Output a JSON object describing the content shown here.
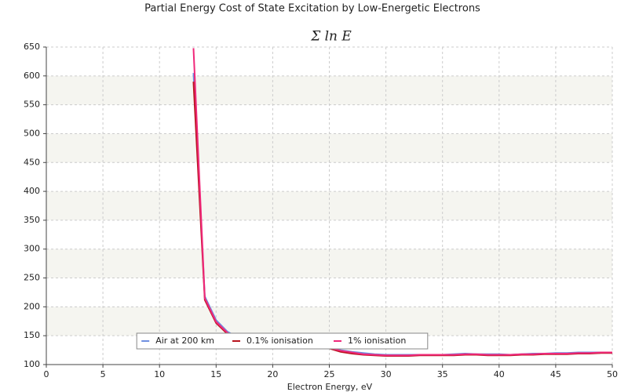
{
  "chart_data": {
    "type": "line",
    "title": "Partial Energy Cost of State Excitation by Low-Energetic Electrons",
    "subtitle": "Σ ln E",
    "x_label": "Electron Energy, eV",
    "x": [
      13,
      14,
      15,
      16,
      17,
      18,
      19,
      20,
      21,
      22,
      23,
      24,
      25,
      26,
      27,
      28,
      29,
      30,
      31,
      32,
      33,
      34,
      35,
      36,
      37,
      38,
      39,
      40,
      41,
      42,
      43,
      44,
      45,
      46,
      47,
      48,
      49,
      50
    ],
    "series": [
      {
        "name": "Air at 200 km",
        "color": "#6f8fe0",
        "values": [
          605,
          218,
          177,
          157,
          146,
          140,
          137,
          135,
          133,
          132,
          132,
          131,
          130,
          125,
          122,
          120,
          118,
          117,
          117,
          117,
          117,
          117,
          117,
          118,
          119,
          118,
          118,
          118,
          117,
          118,
          119,
          119,
          120,
          120,
          121,
          121,
          121,
          121
        ]
      },
      {
        "name": "0.1% ionisation",
        "color": "#b8141e",
        "values": [
          590,
          212,
          172,
          153,
          143,
          138,
          135,
          133,
          131,
          130,
          130,
          129,
          128,
          122,
          119,
          117,
          116,
          115,
          115,
          115,
          116,
          116,
          116,
          116,
          117,
          117,
          116,
          116,
          116,
          117,
          117,
          118,
          118,
          118,
          119,
          119,
          120,
          120
        ]
      },
      {
        "name": "1% ionisation",
        "color": "#f0287a",
        "values": [
          648,
          215,
          174,
          155,
          145,
          139,
          136,
          134,
          132,
          131,
          131,
          130,
          129,
          124,
          121,
          118,
          117,
          116,
          116,
          116,
          117,
          117,
          117,
          117,
          118,
          118,
          117,
          117,
          117,
          118,
          118,
          119,
          119,
          119,
          120,
          120,
          121,
          121
        ]
      }
    ],
    "xlim": [
      0,
      50
    ],
    "xticks": [
      0,
      5,
      10,
      15,
      20,
      25,
      30,
      35,
      40,
      45,
      50
    ],
    "ylim": [
      100,
      650
    ],
    "yticks": [
      100,
      150,
      200,
      250,
      300,
      350,
      400,
      450,
      500,
      550,
      600,
      650
    ],
    "grid": true,
    "legend": "lower center"
  }
}
